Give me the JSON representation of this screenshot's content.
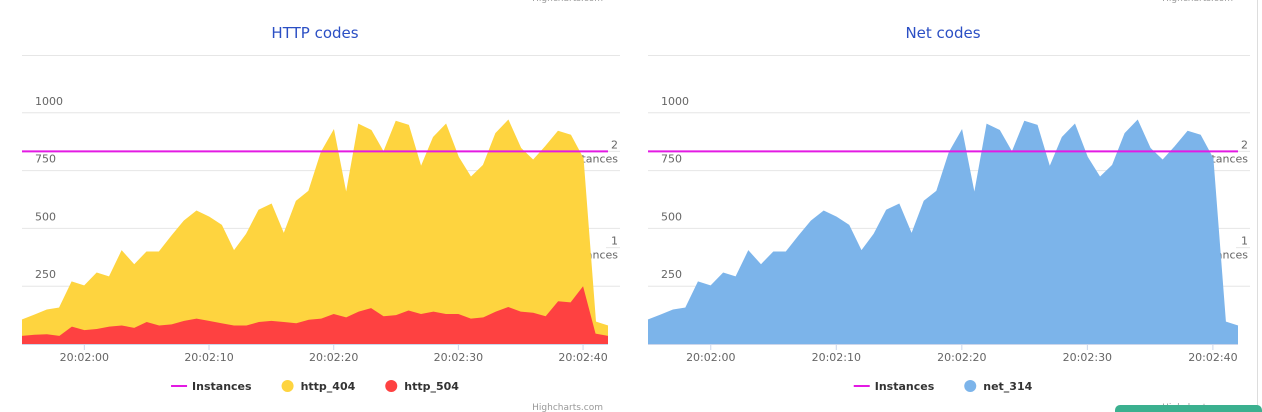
{
  "chart_data": [
    {
      "type": "area",
      "title": "HTTP codes",
      "credits": "Highcharts.com",
      "top_credits": "Highcharts.com",
      "x": [
        "20:01:55",
        "20:01:56",
        "20:01:57",
        "20:01:58",
        "20:01:59",
        "20:02:00",
        "20:02:01",
        "20:02:02",
        "20:02:03",
        "20:02:04",
        "20:02:05",
        "20:02:06",
        "20:02:07",
        "20:02:08",
        "20:02:09",
        "20:02:10",
        "20:02:11",
        "20:02:12",
        "20:02:13",
        "20:02:14",
        "20:02:15",
        "20:02:16",
        "20:02:17",
        "20:02:18",
        "20:02:19",
        "20:02:20",
        "20:02:21",
        "20:02:22",
        "20:02:23",
        "20:02:24",
        "20:02:25",
        "20:02:26",
        "20:02:27",
        "20:02:28",
        "20:02:29",
        "20:02:30",
        "20:02:31",
        "20:02:32",
        "20:02:33",
        "20:02:34",
        "20:02:35",
        "20:02:36",
        "20:02:37",
        "20:02:38",
        "20:02:39",
        "20:02:40",
        "20:02:41",
        "20:02:42"
      ],
      "xlim": [
        "20:01:55",
        "20:02:42"
      ],
      "xticks": [
        "20:02:00",
        "20:02:10",
        "20:02:20",
        "20:02:30",
        "20:02:40"
      ],
      "ylim": [
        0,
        1250
      ],
      "yticks": [
        250,
        500,
        750,
        1000
      ],
      "y2lim": [
        0,
        3
      ],
      "y2ticks": [
        {
          "value": 1,
          "label": "1 instances"
        },
        {
          "value": 2,
          "label": "2 instances"
        }
      ],
      "stacked": true,
      "grid": true,
      "series": [
        {
          "name": "Instances",
          "type": "line",
          "axis": "y2",
          "color": "#e31ae3",
          "values": [
            2,
            2,
            2,
            2,
            2,
            2,
            2,
            2,
            2,
            2,
            2,
            2,
            2,
            2,
            2,
            2,
            2,
            2,
            2,
            2,
            2,
            2,
            2,
            2,
            2,
            2,
            2,
            2,
            2,
            2,
            2,
            2,
            2,
            2,
            2,
            2,
            2,
            2,
            2,
            2,
            2,
            2,
            2,
            2,
            2,
            2,
            2,
            2
          ]
        },
        {
          "name": "http_404",
          "type": "area",
          "color": "#fed43f",
          "values": [
            69,
            85,
            105,
            121,
            193,
            191,
            242,
            215,
            322,
            272,
            303,
            318,
            382,
            432,
            465,
            449,
            424,
            322,
            395,
            484,
            505,
            380,
            528,
            556,
            719,
            794,
            533,
            810,
            769,
            709,
            838,
            801,
            635,
            754,
            820,
            678,
            611,
            658,
            771,
            807,
            707,
            660,
            735,
            735,
            723,
            553,
            50,
            43
          ]
        },
        {
          "name": "http_504",
          "type": "area",
          "color": "#fe4141",
          "values": [
            35,
            40,
            42,
            35,
            75,
            60,
            65,
            75,
            80,
            70,
            95,
            80,
            85,
            100,
            110,
            100,
            90,
            80,
            80,
            95,
            100,
            95,
            90,
            105,
            110,
            130,
            115,
            140,
            155,
            120,
            125,
            145,
            130,
            140,
            130,
            130,
            110,
            115,
            140,
            160,
            140,
            135,
            120,
            185,
            180,
            250,
            45,
            35
          ]
        }
      ]
    },
    {
      "type": "area",
      "title": "Net codes",
      "credits": "Highcharts.com",
      "top_credits": "Highcharts.com",
      "x": [
        "20:01:55",
        "20:01:56",
        "20:01:57",
        "20:01:58",
        "20:01:59",
        "20:02:00",
        "20:02:01",
        "20:02:02",
        "20:02:03",
        "20:02:04",
        "20:02:05",
        "20:02:06",
        "20:02:07",
        "20:02:08",
        "20:02:09",
        "20:02:10",
        "20:02:11",
        "20:02:12",
        "20:02:13",
        "20:02:14",
        "20:02:15",
        "20:02:16",
        "20:02:17",
        "20:02:18",
        "20:02:19",
        "20:02:20",
        "20:02:21",
        "20:02:22",
        "20:02:23",
        "20:02:24",
        "20:02:25",
        "20:02:26",
        "20:02:27",
        "20:02:28",
        "20:02:29",
        "20:02:30",
        "20:02:31",
        "20:02:32",
        "20:02:33",
        "20:02:34",
        "20:02:35",
        "20:02:36",
        "20:02:37",
        "20:02:38",
        "20:02:39",
        "20:02:40",
        "20:02:41",
        "20:02:42"
      ],
      "xlim": [
        "20:01:55",
        "20:02:42"
      ],
      "xticks": [
        "20:02:00",
        "20:02:10",
        "20:02:20",
        "20:02:30",
        "20:02:40"
      ],
      "ylim": [
        0,
        1250
      ],
      "yticks": [
        250,
        500,
        750,
        1000
      ],
      "y2lim": [
        0,
        3
      ],
      "y2ticks": [
        {
          "value": 1,
          "label": "1 instances"
        },
        {
          "value": 2,
          "label": "2 instances"
        }
      ],
      "stacked": true,
      "grid": true,
      "series": [
        {
          "name": "Instances",
          "type": "line",
          "axis": "y2",
          "color": "#e31ae3",
          "values": [
            2,
            2,
            2,
            2,
            2,
            2,
            2,
            2,
            2,
            2,
            2,
            2,
            2,
            2,
            2,
            2,
            2,
            2,
            2,
            2,
            2,
            2,
            2,
            2,
            2,
            2,
            2,
            2,
            2,
            2,
            2,
            2,
            2,
            2,
            2,
            2,
            2,
            2,
            2,
            2,
            2,
            2,
            2,
            2,
            2,
            2,
            2,
            2
          ]
        },
        {
          "name": "net_314",
          "type": "area",
          "color": "#7cb4ea",
          "values": [
            104,
            125,
            147,
            156,
            268,
            251,
            307,
            290,
            402,
            342,
            398,
            398,
            467,
            532,
            575,
            549,
            514,
            402,
            475,
            579,
            605,
            475,
            618,
            661,
            829,
            924,
            648,
            950,
            924,
            829,
            963,
            946,
            765,
            894,
            950,
            808,
            721,
            773,
            911,
            967,
            847,
            795,
            855,
            920,
            903,
            803,
            95,
            78
          ]
        }
      ]
    }
  ]
}
